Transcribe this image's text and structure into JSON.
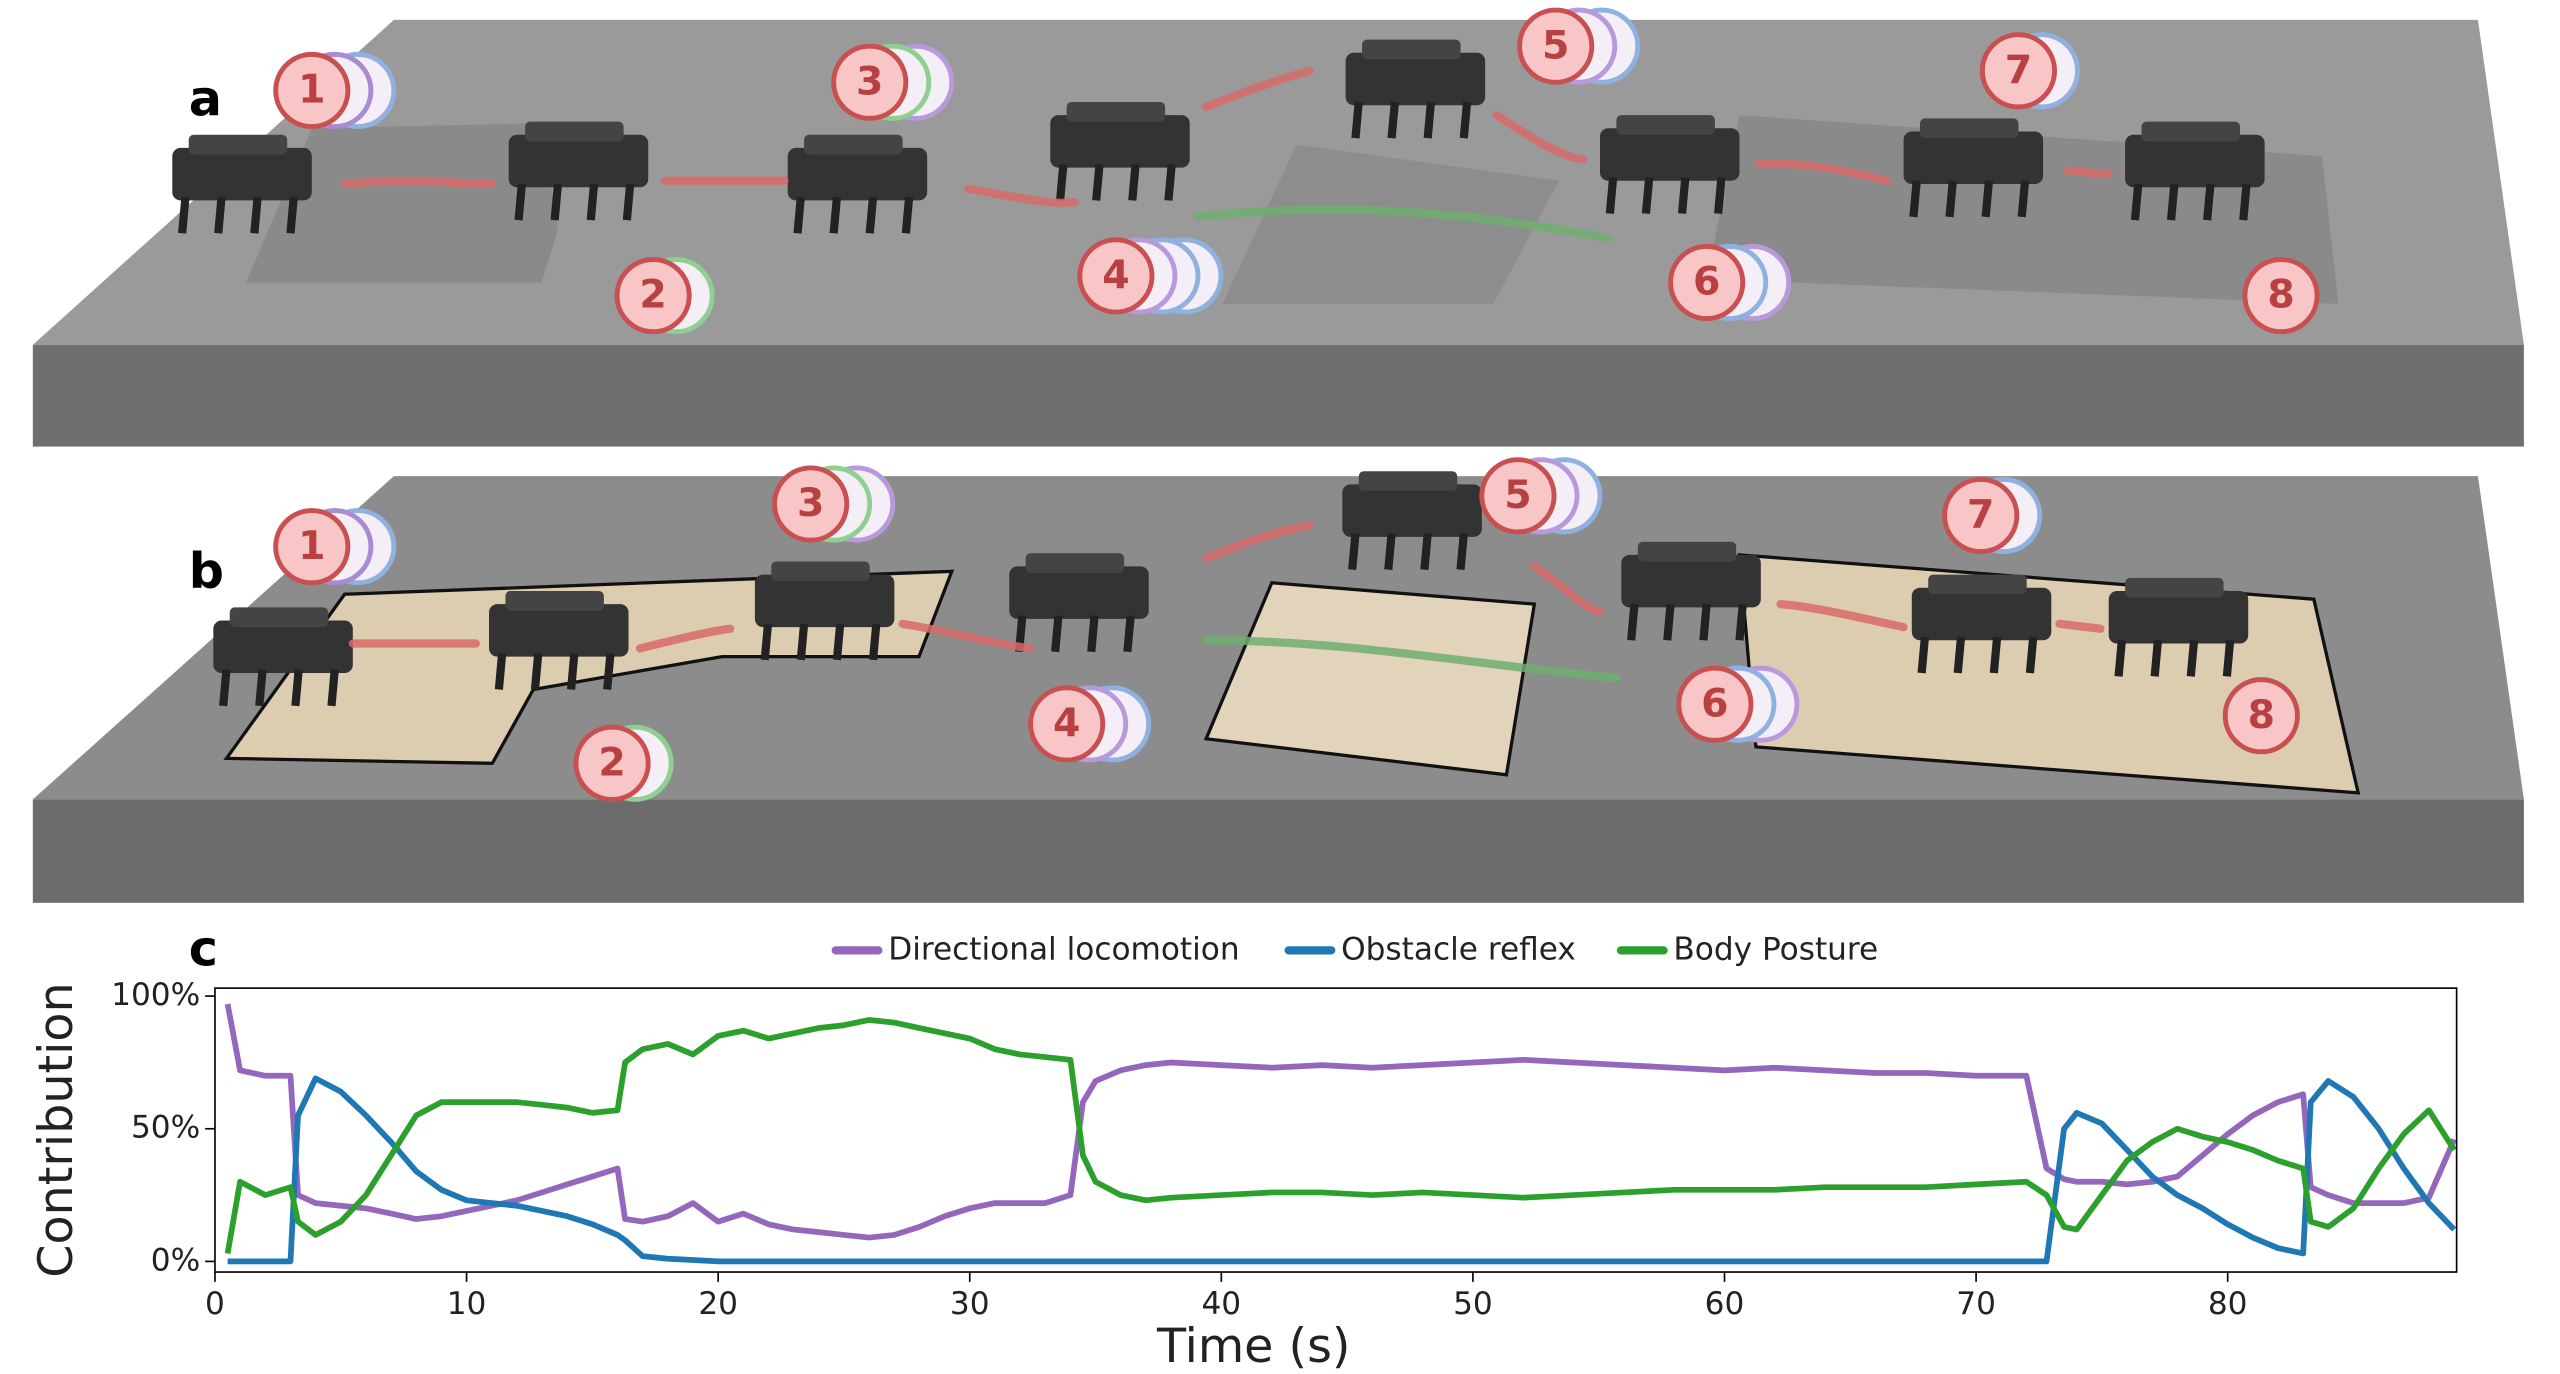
{
  "panels": [
    {
      "letter": "a",
      "markers": [
        "1",
        "2",
        "3",
        "4",
        "5",
        "6",
        "7",
        "8"
      ]
    },
    {
      "letter": "b",
      "markers": [
        "1",
        "2",
        "3",
        "4",
        "5",
        "6",
        "7",
        "8"
      ]
    }
  ],
  "chart_letter": "c",
  "chart_data": {
    "type": "line",
    "xlabel": "Time (s)",
    "ylabel": "Contribution",
    "xlim": [
      0,
      89.1
    ],
    "ylim": [
      -4,
      103
    ],
    "xticks": [
      0,
      10,
      20,
      30,
      40,
      50,
      60,
      70,
      80
    ],
    "yticks": [
      {
        "value": 0,
        "label": "0%"
      },
      {
        "value": 50,
        "label": "50%"
      },
      {
        "value": 100,
        "label": "100%"
      }
    ],
    "legend": "top",
    "x": [
      0.5,
      1,
      2,
      3,
      3.3,
      4,
      5,
      6,
      7,
      8,
      9,
      10,
      11,
      12,
      13,
      14,
      15,
      16,
      16.3,
      17,
      18,
      19,
      20,
      21,
      22,
      23,
      24,
      25,
      26,
      27,
      28,
      29,
      30,
      31,
      32,
      33,
      34,
      34.5,
      35,
      36,
      37,
      38,
      40,
      42,
      44,
      46,
      48,
      50,
      52,
      54,
      56,
      58,
      60,
      62,
      64,
      66,
      68,
      70,
      72,
      72.8,
      73.5,
      74,
      75,
      76,
      77,
      78,
      79,
      80,
      81,
      82,
      83,
      83.3,
      84,
      85,
      86,
      87,
      88,
      89
    ],
    "series": [
      {
        "name": "Directional locomotion",
        "color": "#9467bd",
        "values": [
          97,
          72,
          70,
          70,
          25,
          22,
          21,
          20,
          18,
          16,
          17,
          19,
          21,
          23,
          26,
          29,
          32,
          35,
          16,
          15,
          17,
          22,
          15,
          18,
          14,
          12,
          11,
          10,
          9,
          10,
          13,
          17,
          20,
          22,
          22,
          22,
          25,
          60,
          68,
          72,
          74,
          75,
          74,
          73,
          74,
          73,
          74,
          75,
          76,
          75,
          74,
          73,
          72,
          73,
          72,
          71,
          71,
          70,
          70,
          35,
          31,
          30,
          30,
          29,
          30,
          32,
          40,
          48,
          55,
          60,
          63,
          28,
          25,
          22,
          22,
          22,
          24,
          46
        ]
      },
      {
        "name": "Obstacle reflex",
        "color": "#1f77b4",
        "values": [
          0,
          0,
          0,
          0,
          55,
          69,
          64,
          55,
          45,
          34,
          27,
          23,
          22,
          21,
          19,
          17,
          14,
          10,
          8,
          2,
          1,
          0.5,
          0,
          0,
          0,
          0,
          0,
          0,
          0,
          0,
          0,
          0,
          0,
          0,
          0,
          0,
          0,
          0,
          0,
          0,
          0,
          0,
          0,
          0,
          0,
          0,
          0,
          0,
          0,
          0,
          0,
          0,
          0,
          0,
          0,
          0,
          0,
          0,
          0,
          0,
          50,
          56,
          52,
          42,
          32,
          25,
          20,
          14,
          9,
          5,
          3,
          60,
          68,
          62,
          50,
          35,
          22,
          12
        ]
      },
      {
        "name": "Body Posture",
        "color": "#2ca02c",
        "values": [
          3,
          30,
          25,
          28,
          15,
          10,
          15,
          25,
          40,
          55,
          60,
          60,
          60,
          60,
          59,
          58,
          56,
          57,
          75,
          80,
          82,
          78,
          85,
          87,
          84,
          86,
          88,
          89,
          91,
          90,
          88,
          86,
          84,
          80,
          78,
          77,
          76,
          40,
          30,
          25,
          23,
          24,
          25,
          26,
          26,
          25,
          26,
          25,
          24,
          25,
          26,
          27,
          27,
          27,
          28,
          28,
          28,
          29,
          30,
          25,
          13,
          12,
          25,
          38,
          45,
          50,
          47,
          45,
          42,
          38,
          35,
          15,
          13,
          20,
          35,
          48,
          57,
          42
        ]
      }
    ]
  }
}
